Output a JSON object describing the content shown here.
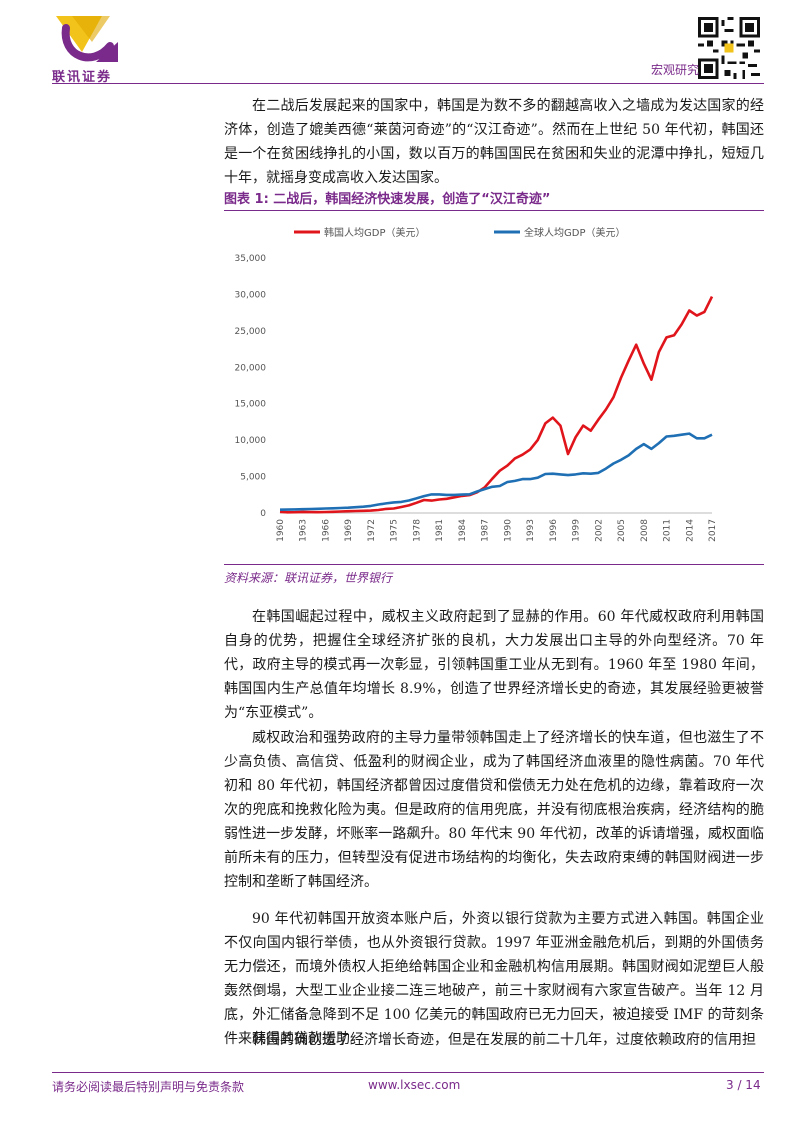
{
  "header": {
    "logo_text": "联讯证券",
    "label": "宏观研究"
  },
  "paragraphs": {
    "p1": "在二战后发展起来的国家中，韩国是为数不多的翻越高收入之墙成为发达国家的经济体，创造了媲美西德“莱茵河奇迹”的“汉江奇迹”。然而在上世纪 50 年代初，韩国还是一个在贫困线挣扎的小国，数以百万的韩国国民在贫困和失业的泥潭中挣扎，短短几十年，就摇身变成高收入发达国家。",
    "p2": "在韩国崛起过程中，威权主义政府起到了显赫的作用。60 年代威权政府利用韩国自身的优势，把握住全球经济扩张的良机，大力发展出口主导的外向型经济。70 年代，政府主导的模式再一次彰显，引领韩国重工业从无到有。1960 年至 1980 年间，韩国国内生产总值年均增长 8.9%，创造了世界经济增长史的奇迹，其发展经验更被誉为“东亚模式”。",
    "p3": "威权政治和强势政府的主导力量带领韩国走上了经济增长的快车道，但也滋生了不少高负债、高信贷、低盈利的财阀企业，成为了韩国经济血液里的隐性病菌。70 年代初和 80 年代初，韩国经济都曾因过度借贷和偿债无力处在危机的边缘，靠着政府一次次的兜底和挽救化险为夷。但是政府的信用兜底，并没有彻底根治疾病，经济结构的脆弱性进一步发酵，坏账率一路飙升。80 年代末 90 年代初，改革的诉请增强，威权面临前所未有的压力，但转型没有促进市场结构的均衡化，失去政府束缚的韩国财阀进一步控制和垄断了韩国经济。",
    "p4": "90 年代初韩国开放资本账户后，外资以银行贷款为主要方式进入韩国。韩国企业不仅向国内银行举债，也从外资银行贷款。1997 年亚洲金融危机后，到期的外国债务无力偿还，而境外债权人拒绝给韩国企业和金融机构信用展期。韩国财阀如泥塑巨人般轰然倒塌，大型工业企业接二连三地破产，前三十家财阀有六家宣告破产。当年 12 月底，外汇储备急降到不足 100 亿美元的韩国政府已无力回天，被迫接受 IMF 的苛刻条件来获得其贷款援助。",
    "p5": "韩国的确创造了经济增长奇迹，但是在发展的前二十几年，过度依赖政府的信用担"
  },
  "figure": {
    "title": "图表 1: 二战后，韩国经济快速发展，创造了“汉江奇迹”",
    "source": "资料来源：联讯证券，世界银行"
  },
  "chart_data": {
    "type": "line",
    "title": "",
    "xlabel": "",
    "ylabel": "",
    "ylim": [
      0,
      35000
    ],
    "yticks": [
      0,
      5000,
      10000,
      15000,
      20000,
      25000,
      30000,
      35000
    ],
    "ytick_labels": [
      "0",
      "5,000",
      "10,000",
      "15,000",
      "20,000",
      "25,000",
      "30,000",
      "35,000"
    ],
    "xtick_labels": [
      "1960",
      "1963",
      "1966",
      "1969",
      "1972",
      "1975",
      "1978",
      "1981",
      "1984",
      "1987",
      "1990",
      "1993",
      "1996",
      "1999",
      "2002",
      "2005",
      "2008",
      "2011",
      "2014",
      "2017"
    ],
    "grid": false,
    "legend": "top",
    "x": [
      1960,
      1961,
      1962,
      1963,
      1964,
      1965,
      1966,
      1967,
      1968,
      1969,
      1970,
      1971,
      1972,
      1973,
      1974,
      1975,
      1976,
      1977,
      1978,
      1979,
      1980,
      1981,
      1982,
      1983,
      1984,
      1985,
      1986,
      1987,
      1988,
      1989,
      1990,
      1991,
      1992,
      1993,
      1994,
      1995,
      1996,
      1997,
      1998,
      1999,
      2000,
      2001,
      2002,
      2003,
      2004,
      2005,
      2006,
      2007,
      2008,
      2009,
      2010,
      2011,
      2012,
      2013,
      2014,
      2015,
      2016,
      2017
    ],
    "series": [
      {
        "name": "韩国人均GDP（美元）",
        "color": "#e0151b",
        "values": [
          160,
          95,
          105,
          145,
          125,
          110,
          135,
          165,
          200,
          245,
          280,
          305,
          325,
          410,
          560,
          620,
          830,
          1050,
          1400,
          1780,
          1700,
          1850,
          1950,
          2150,
          2350,
          2460,
          2840,
          3500,
          4700,
          5800,
          6500,
          7500,
          8000,
          8700,
          10000,
          12300,
          13100,
          12000,
          8100,
          10400,
          12000,
          11300,
          12800,
          14200,
          15900,
          18600,
          20900,
          23100,
          20500,
          18300,
          22100,
          24100,
          24400,
          25900,
          27800,
          27100,
          27600,
          29700
        ]
      },
      {
        "name": "全球人均GDP（美元）",
        "color": "#1f6fb4",
        "values": [
          450,
          470,
          490,
          520,
          550,
          580,
          620,
          650,
          680,
          730,
          800,
          870,
          980,
          1170,
          1320,
          1450,
          1530,
          1720,
          2000,
          2320,
          2550,
          2550,
          2480,
          2480,
          2520,
          2570,
          2950,
          3280,
          3600,
          3700,
          4250,
          4400,
          4650,
          4650,
          4850,
          5350,
          5400,
          5300,
          5200,
          5300,
          5450,
          5400,
          5500,
          6100,
          6800,
          7300,
          7900,
          8800,
          9450,
          8800,
          9600,
          10500,
          10600,
          10750,
          10900,
          10250,
          10250,
          10750
        ]
      }
    ]
  },
  "footer": {
    "disclaimer": "请务必阅读最后特别声明与免责条款",
    "website": "www.lxsec.com",
    "page": "3 / 14"
  }
}
